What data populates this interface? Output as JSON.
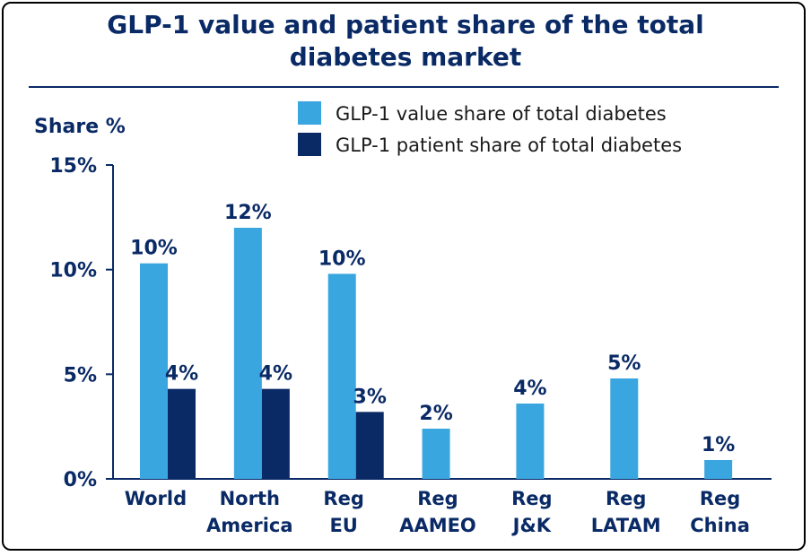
{
  "chart_data": {
    "type": "bar",
    "title": "GLP-1 value and patient share of the total diabetes market",
    "title_lines": [
      "GLP-1 value and patient share of the total",
      "diabetes market"
    ],
    "ylabel": "Share %",
    "xlabel": "",
    "ylim": [
      0,
      15
    ],
    "yticks": [
      {
        "value": 0,
        "label": "0%"
      },
      {
        "value": 5,
        "label": "5%"
      },
      {
        "value": 10,
        "label": "10%"
      },
      {
        "value": 15,
        "label": "15%"
      }
    ],
    "categories": [
      [
        "World"
      ],
      [
        "North",
        "America"
      ],
      [
        "Reg",
        "EU"
      ],
      [
        "Reg",
        "AAMEO"
      ],
      [
        "Reg",
        "J&K"
      ],
      [
        "Reg",
        "LATAM"
      ],
      [
        "Reg",
        "China"
      ]
    ],
    "series": [
      {
        "name": "GLP-1 value share of total diabetes",
        "color": "#3aa6df",
        "values": [
          10.3,
          12.0,
          9.8,
          2.4,
          3.6,
          4.8,
          0.9
        ],
        "labels": [
          "10%",
          "12%",
          "10%",
          "2%",
          "4%",
          "5%",
          "1%"
        ]
      },
      {
        "name": "GLP-1 patient share of total diabetes",
        "color": "#0a2a66",
        "values": [
          4.3,
          4.3,
          3.2,
          null,
          null,
          null,
          null
        ],
        "labels": [
          "4%",
          "4%",
          "3%",
          null,
          null,
          null,
          null
        ]
      }
    ],
    "legend_position": "top-right",
    "grid": false
  }
}
